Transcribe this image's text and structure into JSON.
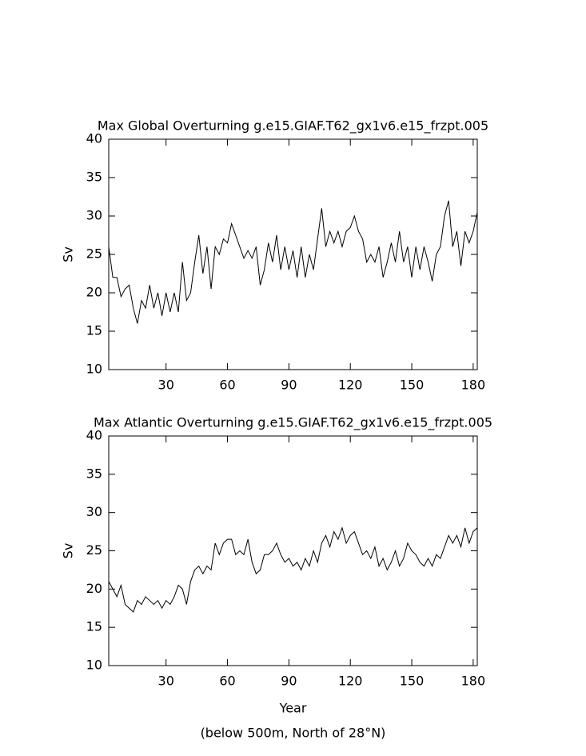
{
  "chart_data": [
    {
      "type": "line",
      "title": "Max Global Overturning g.e15.GIAF.T62_gx1v6.e15_frzpt.005",
      "y_label": "Sv",
      "xlim": [
        2,
        182
      ],
      "ylim": [
        10,
        40
      ],
      "xticks": [
        30,
        60,
        90,
        120,
        150,
        180
      ],
      "yticks": [
        10,
        15,
        20,
        25,
        30,
        35,
        40
      ],
      "x": [
        2,
        4,
        6,
        8,
        10,
        12,
        14,
        16,
        18,
        20,
        22,
        24,
        26,
        28,
        30,
        32,
        34,
        36,
        38,
        40,
        42,
        44,
        46,
        48,
        50,
        52,
        54,
        56,
        58,
        60,
        62,
        64,
        66,
        68,
        70,
        72,
        74,
        76,
        78,
        80,
        82,
        84,
        86,
        88,
        90,
        92,
        94,
        96,
        98,
        100,
        102,
        104,
        106,
        108,
        110,
        112,
        114,
        116,
        118,
        120,
        122,
        124,
        126,
        128,
        130,
        132,
        134,
        136,
        138,
        140,
        142,
        144,
        146,
        148,
        150,
        152,
        154,
        156,
        158,
        160,
        162,
        164,
        166,
        168,
        170,
        172,
        174,
        176,
        178,
        180,
        182
      ],
      "series": [
        {
          "color": "#000000",
          "values": [
            26,
            22,
            22,
            19.5,
            20.5,
            21,
            18,
            16,
            19,
            18,
            21,
            18,
            20,
            17,
            20,
            17.5,
            20,
            17.5,
            24,
            19,
            20,
            24,
            27.5,
            22.5,
            26,
            20.5,
            26,
            25,
            27,
            26.5,
            29,
            27.5,
            26,
            24.5,
            25.5,
            24.5,
            26,
            21,
            23,
            26.5,
            24,
            27.5,
            23,
            26,
            23,
            25.5,
            22,
            26,
            22,
            25,
            23,
            27,
            31,
            26,
            28,
            26.5,
            28,
            26,
            28,
            28.5,
            30,
            28,
            27,
            24,
            25,
            24,
            26,
            22,
            24,
            26.5,
            24,
            28,
            24,
            26,
            22,
            26,
            23,
            26,
            24,
            21.5,
            25,
            26,
            30,
            32,
            26,
            28,
            23.5,
            28,
            26.5,
            28,
            30.5
          ]
        }
      ]
    },
    {
      "type": "line",
      "title": "Max Atlantic Overturning g.e15.GIAF.T62_gx1v6.e15_frzpt.005",
      "y_label": "Sv",
      "x_label": "Year",
      "annotation": "(below 500m, North of 28°N)",
      "xlim": [
        2,
        182
      ],
      "ylim": [
        10,
        40
      ],
      "xticks": [
        30,
        60,
        90,
        120,
        150,
        180
      ],
      "yticks": [
        10,
        15,
        20,
        25,
        30,
        35,
        40
      ],
      "x": [
        2,
        4,
        6,
        8,
        10,
        12,
        14,
        16,
        18,
        20,
        22,
        24,
        26,
        28,
        30,
        32,
        34,
        36,
        38,
        40,
        42,
        44,
        46,
        48,
        50,
        52,
        54,
        56,
        58,
        60,
        62,
        64,
        66,
        68,
        70,
        72,
        74,
        76,
        78,
        80,
        82,
        84,
        86,
        88,
        90,
        92,
        94,
        96,
        98,
        100,
        102,
        104,
        106,
        108,
        110,
        112,
        114,
        116,
        118,
        120,
        122,
        124,
        126,
        128,
        130,
        132,
        134,
        136,
        138,
        140,
        142,
        144,
        146,
        148,
        150,
        152,
        154,
        156,
        158,
        160,
        162,
        164,
        166,
        168,
        170,
        172,
        174,
        176,
        178,
        180,
        182
      ],
      "series": [
        {
          "color": "#000000",
          "values": [
            21,
            20,
            19,
            20.5,
            18,
            17.5,
            17,
            18.5,
            18,
            19,
            18.5,
            18,
            18.5,
            17.5,
            18.5,
            18,
            19,
            20.5,
            20,
            18,
            21,
            22.5,
            23,
            22,
            23,
            22.5,
            26,
            24.5,
            26,
            26.5,
            26.5,
            24.5,
            25,
            24.5,
            26.5,
            23.5,
            22,
            22.5,
            24.5,
            24.5,
            25,
            26,
            24.5,
            23.5,
            24,
            23,
            23.5,
            22.5,
            24,
            23,
            25,
            23.5,
            26,
            27,
            25.5,
            27.5,
            26.5,
            28,
            26,
            27,
            27.5,
            26,
            24.5,
            25,
            24,
            25.5,
            23,
            24,
            22.5,
            23.5,
            25,
            23,
            24,
            26,
            25,
            24.5,
            23.5,
            23,
            24,
            23,
            24.5,
            24,
            25.5,
            27,
            26,
            27,
            25.5,
            28,
            26,
            27.5,
            28
          ]
        }
      ]
    }
  ]
}
